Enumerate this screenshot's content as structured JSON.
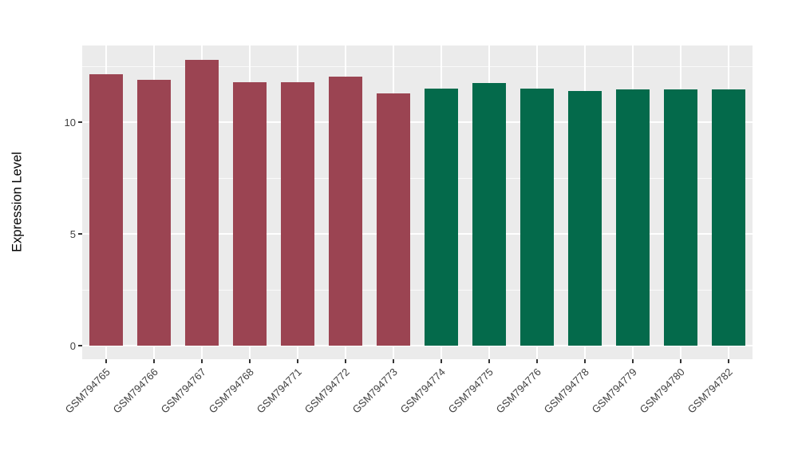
{
  "chart_data": {
    "type": "bar",
    "title": "",
    "xlabel": "",
    "ylabel": "Expression Level",
    "categories": [
      "GSM794765",
      "GSM794766",
      "GSM794767",
      "GSM794768",
      "GSM794771",
      "GSM794772",
      "GSM794773",
      "GSM794774",
      "GSM794775",
      "GSM794776",
      "GSM794778",
      "GSM794779",
      "GSM794780",
      "GSM794782"
    ],
    "values": [
      12.15,
      11.9,
      12.8,
      11.8,
      11.8,
      12.05,
      11.3,
      11.5,
      11.75,
      11.5,
      11.4,
      11.45,
      11.45,
      11.45
    ],
    "bar_colors": [
      "#9B4452",
      "#9B4452",
      "#9B4452",
      "#9B4452",
      "#9B4452",
      "#9B4452",
      "#9B4452",
      "#046A4B",
      "#046A4B",
      "#046A4B",
      "#046A4B",
      "#046A4B",
      "#046A4B",
      "#046A4B"
    ],
    "group_colors": {
      "group1": "#9B4452",
      "group2": "#046A4B"
    },
    "yticks": [
      0,
      5,
      10
    ],
    "ytick_labels": [
      "0",
      "5",
      "10"
    ],
    "yticks_minor": [
      2.5,
      7.5,
      12.5
    ],
    "ylim": [
      -0.64,
      13.43
    ],
    "grid": true,
    "legend_position": "none",
    "panel_background": "#EBEBEB",
    "gridline_color": "#FFFFFF"
  }
}
